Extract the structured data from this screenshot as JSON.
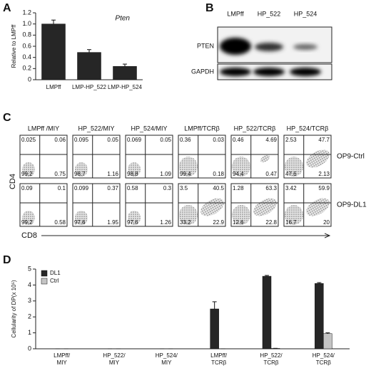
{
  "panel_labels": [
    "A",
    "B",
    "C",
    "D"
  ],
  "chart_data": [
    {
      "type": "bar",
      "annotation": "Pten",
      "y_label": "Relative to LMPff",
      "categories": [
        "LMPff",
        "LMP-HP_522",
        "LMP-HP_524"
      ],
      "values": [
        1.0,
        0.49,
        0.24
      ],
      "errors": [
        0.07,
        0.05,
        0.04
      ],
      "color": "#262626",
      "ylim": [
        0,
        1.2
      ],
      "yticks": [
        0,
        0.2,
        0.4,
        0.6,
        0.8,
        {
          "value": 1,
          "label": "1.0"
        },
        1.2
      ]
    },
    {
      "type": "grouped_bar",
      "y_label": "Cellularity of DP(x 10⁵)",
      "categories": [
        [
          "LMPff/",
          "MIY"
        ],
        [
          "HP_522/",
          "MIY"
        ],
        [
          "HP_524/",
          "MIY"
        ],
        [
          "LMPff/",
          "TCRβ"
        ],
        [
          "HP_522/",
          "TCRβ"
        ],
        [
          "HP_524/",
          "TCRβ"
        ]
      ],
      "series": [
        {
          "name": "DL1",
          "color": "#262626",
          "values": [
            0,
            0,
            0,
            2.5,
            4.55,
            4.1
          ],
          "errors": [
            0,
            0,
            0,
            0.45,
            0.05,
            0.05
          ]
        },
        {
          "name": "Ctrl",
          "color": "#c4c4c4",
          "values": [
            0,
            0,
            0,
            0,
            0.03,
            0.95
          ],
          "errors": [
            0,
            0,
            0,
            0,
            0,
            0.05
          ]
        }
      ],
      "ylim": [
        0,
        5
      ],
      "yticks": [
        0,
        1,
        2,
        3,
        4,
        5
      ],
      "legend": "upper left"
    }
  ],
  "blot": {
    "lanes": [
      "LMPff",
      "HP_522",
      "HP_524"
    ],
    "rows": [
      "PTEN",
      "GAPDH"
    ]
  },
  "flow": {
    "y_label": "CD4",
    "x_label": "CD8",
    "columns": [
      "LMPff /MIY",
      "HP_522/MIY",
      "HP_524/MIY",
      "LMPff/TCRβ",
      "HP_522/TCRβ",
      "HP_524/TCRβ"
    ],
    "rows": [
      {
        "name": "OP9-Ctrl",
        "quadrants": [
          [
            "0.025",
            "0.06",
            "99.2",
            "0.75"
          ],
          [
            "0.095",
            "0.05",
            "98.7",
            "1.16"
          ],
          [
            "0.069",
            "0.05",
            "98.8",
            "1.09"
          ],
          [
            "0.36",
            "0.03",
            "99.4",
            "0.18"
          ],
          [
            "0.46",
            "4.69",
            "94.4",
            "0.47"
          ],
          [
            "2.53",
            "47.7",
            "47.6",
            "2.13"
          ]
        ]
      },
      {
        "name": "OP9-DL1",
        "quadrants": [
          [
            "0.09",
            "0.1",
            "99.2",
            "0.58"
          ],
          [
            "0.099",
            "0.37",
            "97.6",
            "1.95"
          ],
          [
            "0.58",
            "0.3",
            "97.6",
            "1.26"
          ],
          [
            "3.5",
            "40.5",
            "33.2",
            "22.9"
          ],
          [
            "1.28",
            "63.3",
            "12.6",
            "22.8"
          ],
          [
            "3.42",
            "59.9",
            "16.7",
            "20"
          ]
        ]
      }
    ]
  }
}
